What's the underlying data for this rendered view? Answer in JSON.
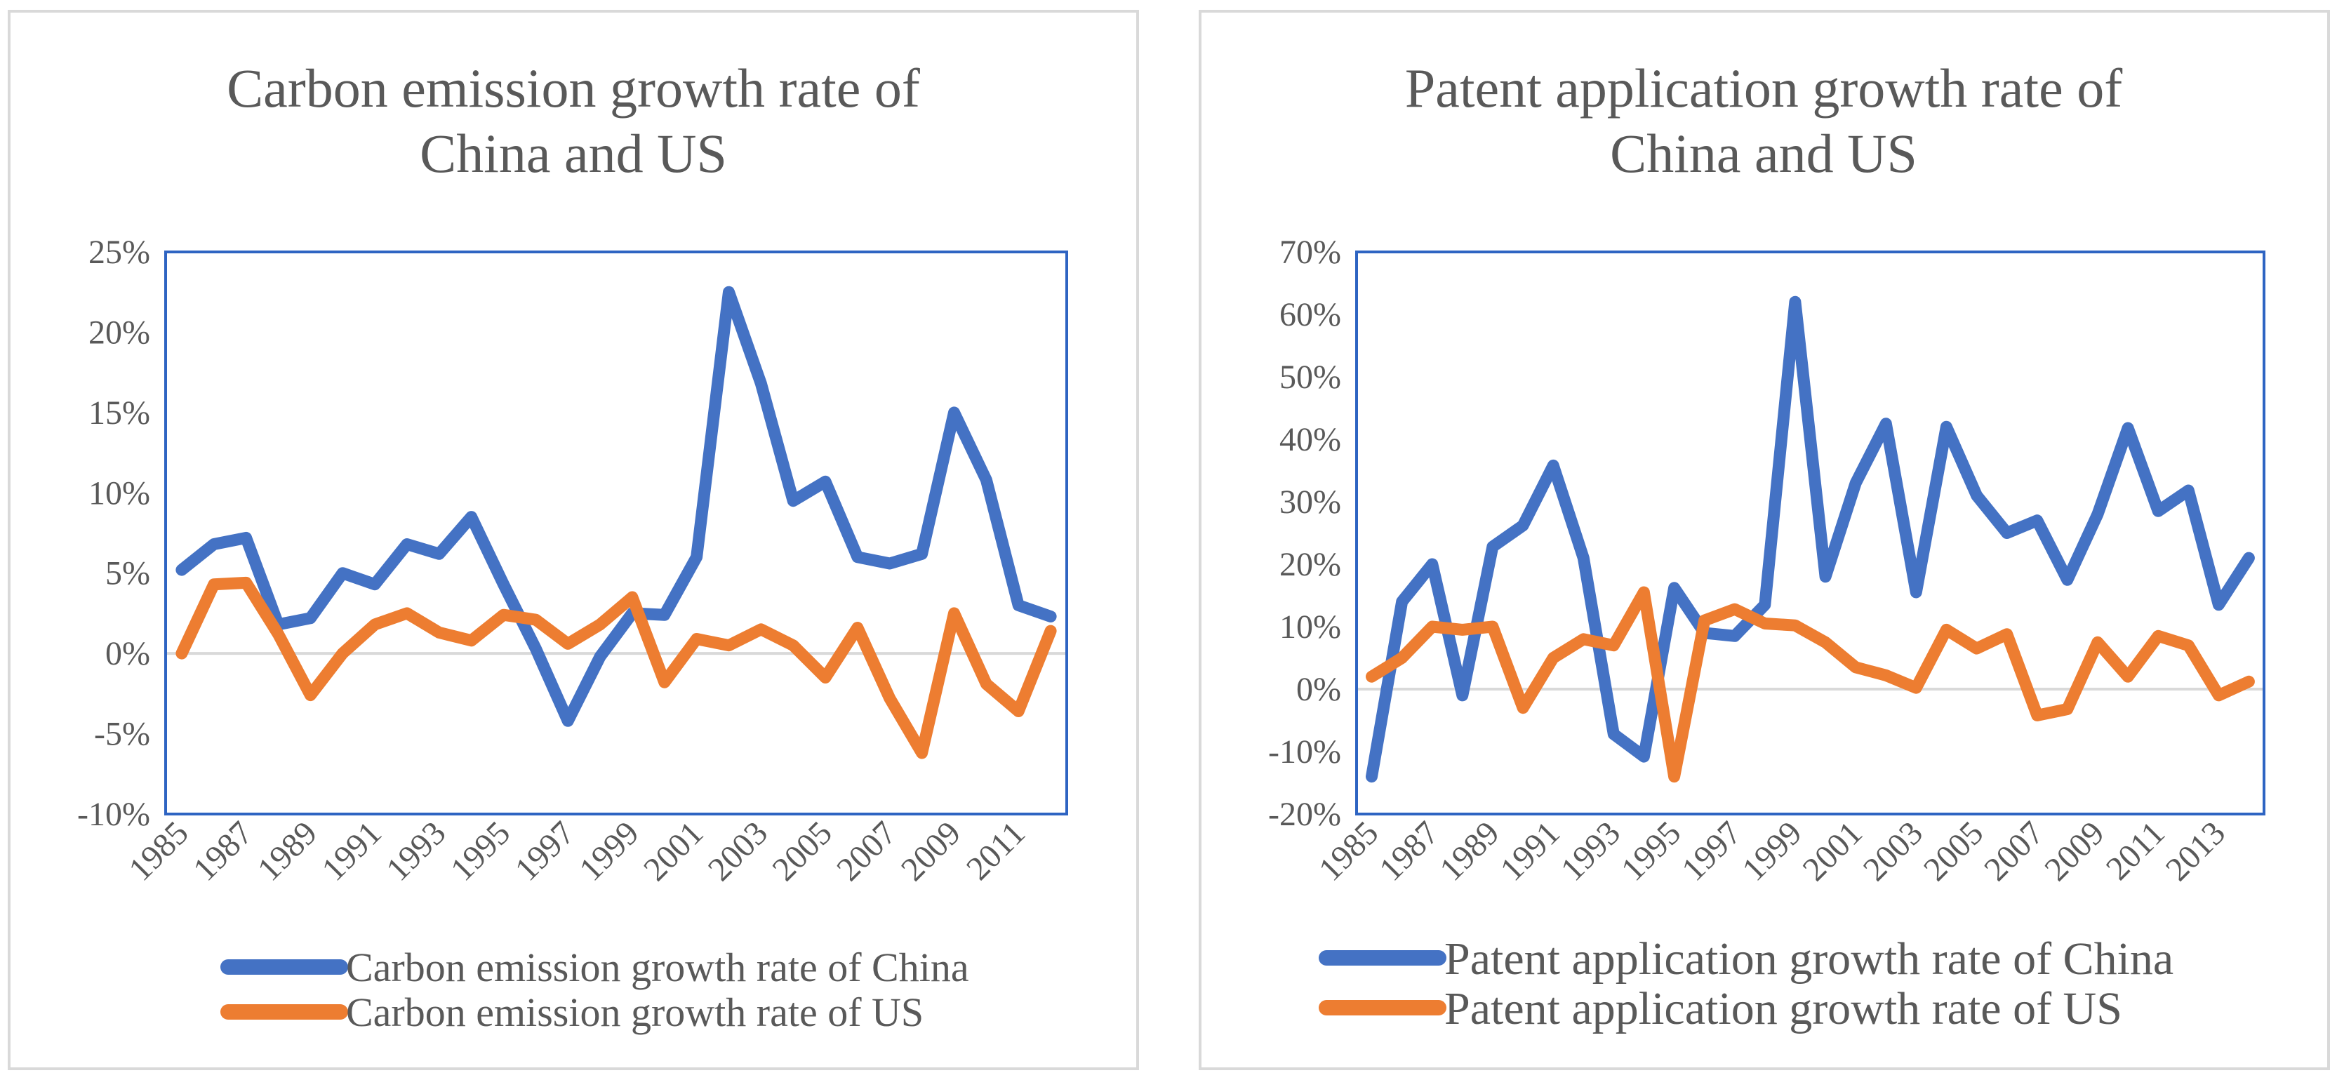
{
  "colors": {
    "china": "#4472C4",
    "us": "#ED7D31",
    "plot_border": "#2E64C2",
    "panel_border": "#D9D9D9",
    "zero_line": "#D9D9D9",
    "text": "#595959"
  },
  "chart_data": [
    {
      "type": "line",
      "title_lines": [
        "Carbon emission growth rate of",
        "China and US"
      ],
      "xlabel": "",
      "ylabel": "",
      "ylim": [
        -0.1,
        0.25
      ],
      "y_ticks": [
        -0.1,
        -0.05,
        0,
        0.05,
        0.1,
        0.15,
        0.2,
        0.25
      ],
      "y_tick_labels": [
        "-10%",
        "-5%",
        "0%",
        "5%",
        "10%",
        "15%",
        "20%",
        "25%"
      ],
      "x": [
        1985,
        1986,
        1987,
        1988,
        1989,
        1990,
        1991,
        1992,
        1993,
        1994,
        1995,
        1996,
        1997,
        1998,
        1999,
        2000,
        2001,
        2002,
        2003,
        2004,
        2005,
        2006,
        2007,
        2008,
        2009,
        2010,
        2011,
        2012
      ],
      "x_tick_labels": [
        "1985",
        "1987",
        "1989",
        "1991",
        "1993",
        "1995",
        "1997",
        "1999",
        "2001",
        "2003",
        "2005",
        "2007",
        "2009",
        "2011"
      ],
      "legend_position": "bottom",
      "series": [
        {
          "name": "Carbon emission growth rate of China",
          "key": "china",
          "values": [
            0.052,
            0.068,
            0.072,
            0.018,
            0.022,
            0.05,
            0.043,
            0.068,
            0.062,
            0.085,
            0.043,
            0.003,
            -0.042,
            -0.002,
            0.025,
            0.024,
            0.06,
            0.225,
            0.168,
            0.095,
            0.107,
            0.06,
            0.056,
            0.062,
            0.15,
            0.108,
            0.03,
            0.023
          ]
        },
        {
          "name": "Carbon emission growth rate of US",
          "key": "us",
          "values": [
            0.0,
            0.043,
            0.044,
            0.012,
            -0.026,
            0.0,
            0.018,
            0.025,
            0.013,
            0.008,
            0.024,
            0.021,
            0.006,
            0.018,
            0.035,
            -0.018,
            0.009,
            0.005,
            0.015,
            0.005,
            -0.015,
            0.016,
            -0.028,
            -0.062,
            0.025,
            -0.019,
            -0.036,
            0.014
          ]
        }
      ]
    },
    {
      "type": "line",
      "title_lines": [
        "Patent application growth rate of",
        "China and US"
      ],
      "xlabel": "",
      "ylabel": "",
      "ylim": [
        -0.2,
        0.7
      ],
      "y_ticks": [
        -0.2,
        -0.1,
        0,
        0.1,
        0.2,
        0.3,
        0.4,
        0.5,
        0.6,
        0.7
      ],
      "y_tick_labels": [
        "-20%",
        "-10%",
        "0%",
        "10%",
        "20%",
        "30%",
        "40%",
        "50%",
        "60%",
        "70%"
      ],
      "x": [
        1985,
        1986,
        1987,
        1988,
        1989,
        1990,
        1991,
        1992,
        1993,
        1994,
        1995,
        1996,
        1997,
        1998,
        1999,
        2000,
        2001,
        2002,
        2003,
        2004,
        2005,
        2006,
        2007,
        2008,
        2009,
        2010,
        2011,
        2012,
        2013,
        2014
      ],
      "x_tick_labels": [
        "1985",
        "1987",
        "1989",
        "1991",
        "1993",
        "1995",
        "1997",
        "1999",
        "2001",
        "2003",
        "2005",
        "2007",
        "2009",
        "2011",
        "2013"
      ],
      "legend_position": "bottom",
      "series": [
        {
          "name": "Patent application growth rate of China",
          "key": "china",
          "values": [
            -0.14,
            0.14,
            0.2,
            -0.01,
            0.228,
            0.262,
            0.358,
            0.21,
            -0.072,
            -0.108,
            0.162,
            0.09,
            0.085,
            0.135,
            0.62,
            0.18,
            0.33,
            0.425,
            0.155,
            0.42,
            0.31,
            0.25,
            0.27,
            0.175,
            0.28,
            0.418,
            0.285,
            0.318,
            0.135,
            0.21
          ]
        },
        {
          "name": "Patent application growth rate of US",
          "key": "us",
          "values": [
            0.02,
            0.05,
            0.1,
            0.095,
            0.1,
            -0.03,
            0.05,
            0.08,
            0.07,
            0.155,
            -0.14,
            0.11,
            0.128,
            0.105,
            0.102,
            0.075,
            0.035,
            0.022,
            0.002,
            0.095,
            0.065,
            0.088,
            -0.042,
            -0.032,
            0.075,
            0.02,
            0.085,
            0.07,
            -0.01,
            0.012
          ]
        }
      ]
    }
  ]
}
